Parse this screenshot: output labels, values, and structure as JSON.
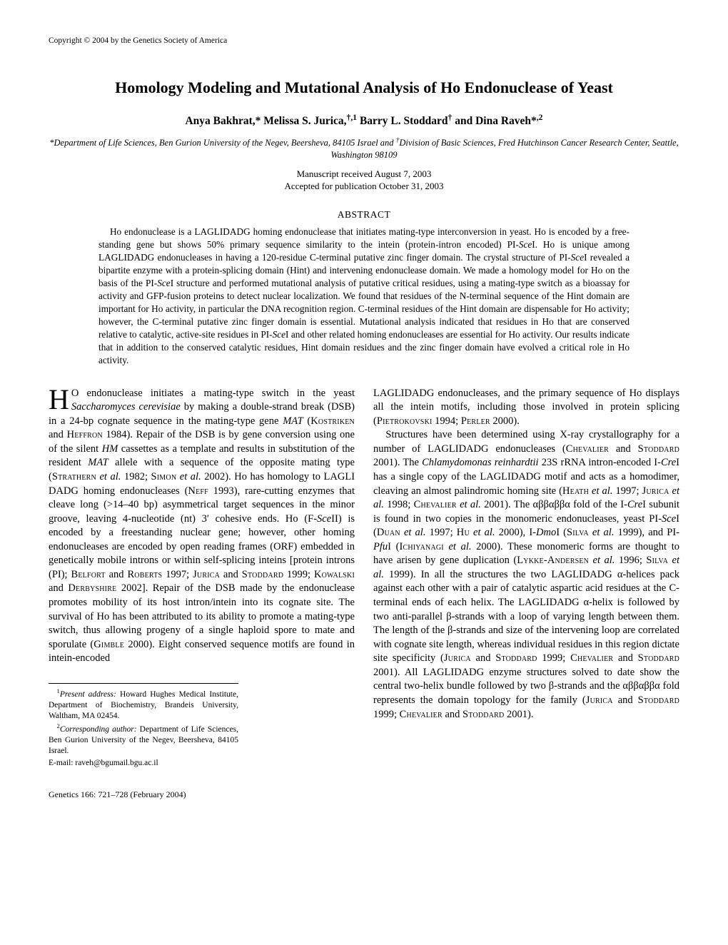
{
  "copyright": "Copyright © 2004 by the Genetics Society of America",
  "title": "Homology Modeling and Mutational Analysis of Ho Endonuclease of Yeast",
  "authors_html": "Anya Bakhrat,* Melissa S. Jurica,<sup>†,1</sup> Barry L. Stoddard<sup>†</sup> and Dina Raveh*<sup>,2</sup>",
  "affiliations_html": "*Department of Life Sciences, Ben Gurion University of the Negev, Beersheva, 84105 Israel and <sup>†</sup>Division of Basic Sciences, Fred Hutchinson Cancer Research Center, Seattle, Washington 98109",
  "dates_line1": "Manuscript received August 7, 2003",
  "dates_line2": "Accepted for publication October 31, 2003",
  "abstract_heading": "ABSTRACT",
  "abstract_body_html": "Ho endonuclease is a LAGLIDADG homing endonuclease that initiates mating-type interconversion in yeast. Ho is encoded by a free-standing gene but shows 50% primary sequence similarity to the intein (protein-intron encoded) PI-<i>Sce</i>I. Ho is unique among LAGLIDADG endonucleases in having a 120-residue C-terminal putative zinc finger domain. The crystal structure of PI-<i>Sce</i>I revealed a bipartite enzyme with a protein-splicing domain (Hint) and intervening endonuclease domain. We made a homology model for Ho on the basis of the PI-<i>Sce</i>I structure and performed mutational analysis of putative critical residues, using a mating-type switch as a bioassay for activity and GFP-fusion proteins to detect nuclear localization. We found that residues of the N-terminal sequence of the Hint domain are important for Ho activity, in particular the DNA recognition region. C-terminal residues of the Hint domain are dispensable for Ho activity; however, the C-terminal putative zinc finger domain is essential. Mutational analysis indicated that residues in Ho that are conserved relative to catalytic, active-site residues in PI-<i>Sce</i>I and other related homing endonucleases are essential for Ho activity. Our results indicate that in addition to the conserved catalytic residues, Hint domain residues and the zinc finger domain have evolved a critical role in Ho activity.",
  "col1_p1_html": "<span class=\"dropcap\">H</span>O endonuclease initiates a mating-type switch in the yeast <i>Saccharomyces cerevisiae</i> by making a double-strand break (DSB) in a 24-bp cognate sequence in the mating-type gene <i>MAT</i> (<span class=\"smallcaps\">Kostriken</span> and <span class=\"smallcaps\">Heffron</span> 1984). Repair of the DSB is by gene conversion using one of the silent <i>HM</i> cassettes as a template and results in substitution of the resident <i>MAT</i> allele with a sequence of the opposite mating type (<span class=\"smallcaps\">Strathern</span> <i>et al.</i> 1982; <span class=\"smallcaps\">Simon</span> <i>et al.</i> 2002). Ho has homology to LAGLI DADG homing endonucleases (<span class=\"smallcaps\">Neff</span> 1993), rare-cutting enzymes that cleave long (>14–40 bp) asymmetrical target sequences in the minor groove, leaving 4-nucleotide (nt) 3′ cohesive ends. Ho (F-<i>Sce</i>II) is encoded by a freestanding nuclear gene; however, other homing endonucleases are encoded by open reading frames (ORF) embedded in genetically mobile introns or within self-splicing inteins [protein introns (PI); <span class=\"smallcaps\">Belfort</span> and <span class=\"smallcaps\">Roberts</span> 1997; <span class=\"smallcaps\">Jurica</span> and <span class=\"smallcaps\">Stoddard</span> 1999; <span class=\"smallcaps\">Kowalski</span> and <span class=\"smallcaps\">Derbyshire</span> 2002]. Repair of the DSB made by the endonuclease promotes mobility of its host intron/intein into its cognate site. The survival of Ho has been attributed to its ability to promote a mating-type switch, thus allowing progeny of a single haploid spore to mate and sporulate (<span class=\"smallcaps\">Gimble</span> 2000). Eight conserved sequence motifs are found in intein-encoded",
  "col2_p1_html": "LAGLIDADG endonucleases, and the primary sequence of Ho displays all the intein motifs, including those involved in protein splicing (<span class=\"smallcaps\">Pietrokovski</span> 1994; <span class=\"smallcaps\">Perler</span> 2000).",
  "col2_p2_html": "Structures have been determined using X-ray crystallography for a number of LAGLIDADG endonucleases (<span class=\"smallcaps\">Chevalier</span> and <span class=\"smallcaps\">Stoddard</span> 2001). The <i>Chlamydomonas reinhardtii</i> 23S rRNA intron-encoded I-<i>Cre</i>I has a single copy of the LAGLIDADG motif and acts as a homodimer, cleaving an almost palindromic homing site (<span class=\"smallcaps\">Heath</span> <i>et al.</i> 1997; <span class=\"smallcaps\">Jurica</span> <i>et al.</i> 1998; <span class=\"smallcaps\">Chevalier</span> <i>et al.</i> 2001). The αββαββα fold of the I-<i>Cre</i>I subunit is found in two copies in the monomeric endonucleases, yeast PI-<i>Sce</i>I (<span class=\"smallcaps\">Duan</span> <i>et al.</i> 1997; <span class=\"smallcaps\">Hu</span> <i>et al.</i> 2000), I-<i>Dmo</i>I (<span class=\"smallcaps\">Silva</span> <i>et al.</i> 1999), and PI-<i>Pfu</i>I (<span class=\"smallcaps\">Ichiyanagi</span> <i>et al.</i> 2000). These monomeric forms are thought to have arisen by gene duplication (<span class=\"smallcaps\">Lykke-Andersen</span> <i>et al.</i> 1996; <span class=\"smallcaps\">Silva</span> <i>et al.</i> 1999). In all the structures the two LAGLIDADG α-helices pack against each other with a pair of catalytic aspartic acid residues at the C-terminal ends of each helix. The LAGLIDADG α-helix is followed by two anti-parallel β-strands with a loop of varying length between them. The length of the β-strands and size of the intervening loop are correlated with cognate site length, whereas individual residues in this region dictate site specificity (<span class=\"smallcaps\">Jurica</span> and <span class=\"smallcaps\">Stoddard</span> 1999; <span class=\"smallcaps\">Chevalier</span> and <span class=\"smallcaps\">Stoddard</span> 2001). All LAGLIDADG enzyme structures solved to date show the central two-helix bundle followed by two β-strands and the αββαββα fold represents the domain topology for the family (<span class=\"smallcaps\">Jurica</span> and <span class=\"smallcaps\">Stoddard</span> 1999; <span class=\"smallcaps\">Chevalier</span> and <span class=\"smallcaps\">Stoddard</span> 2001).",
  "footnote1_html": "<sup>1</sup><i>Present address:</i> Howard Hughes Medical Institute, Department of Biochemistry, Brandeis University, Waltham, MA 02454.",
  "footnote2_html": "<sup>2</sup><i>Corresponding author:</i> Department of Life Sciences, Ben Gurion University of the Negev, Beersheva, 84105 Israel.",
  "footnote3": "E-mail: raveh@bgumail.bgu.ac.il",
  "footer": "Genetics 166: 721–728 (February 2004)"
}
